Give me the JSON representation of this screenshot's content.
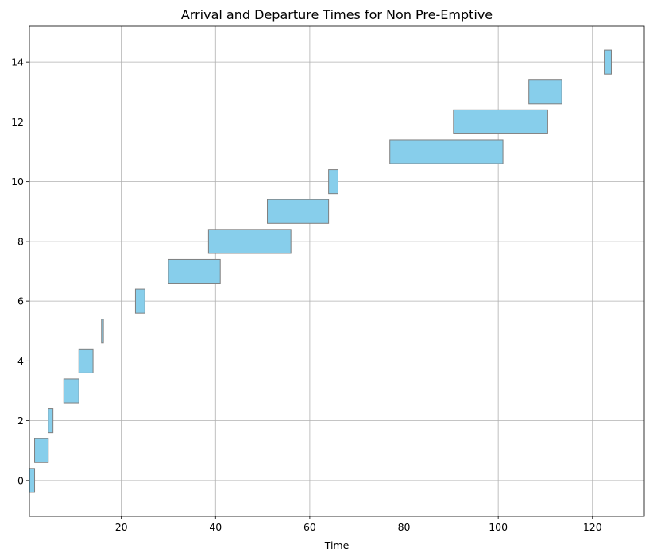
{
  "chart_data": {
    "type": "bar",
    "orientation": "horizontal",
    "title": "Arrival and Departure Times for Non Pre-Emptive",
    "xlabel": "Time",
    "ylabel": "",
    "xlim": [
      0.5,
      131
    ],
    "ylim": [
      -1.2,
      15.2
    ],
    "xticks": [
      20,
      40,
      60,
      80,
      100,
      120
    ],
    "yticks": [
      0,
      2,
      4,
      6,
      8,
      10,
      12,
      14
    ],
    "grid": true,
    "legend": "none",
    "bar_color": "#87ceeb",
    "edge_color": "#7f7f7f",
    "bar_height": 0.8,
    "bars": [
      {
        "y": 0,
        "start": 0.5,
        "end": 1.6
      },
      {
        "y": 1,
        "start": 1.6,
        "end": 4.5
      },
      {
        "y": 2,
        "start": 4.5,
        "end": 5.5
      },
      {
        "y": 3,
        "start": 7.8,
        "end": 11.0
      },
      {
        "y": 4,
        "start": 11.0,
        "end": 14.0
      },
      {
        "y": 5,
        "start": 15.8,
        "end": 16.2
      },
      {
        "y": 6,
        "start": 23.0,
        "end": 25.0
      },
      {
        "y": 7,
        "start": 30.0,
        "end": 41.0
      },
      {
        "y": 8,
        "start": 38.5,
        "end": 56.0
      },
      {
        "y": 9,
        "start": 51.0,
        "end": 64.0
      },
      {
        "y": 10,
        "start": 64.0,
        "end": 66.0
      },
      {
        "y": 11,
        "start": 77.0,
        "end": 101.0
      },
      {
        "y": 12,
        "start": 90.5,
        "end": 110.5
      },
      {
        "y": 13,
        "start": 106.5,
        "end": 113.5
      },
      {
        "y": 14,
        "start": 122.5,
        "end": 124.0
      }
    ]
  }
}
